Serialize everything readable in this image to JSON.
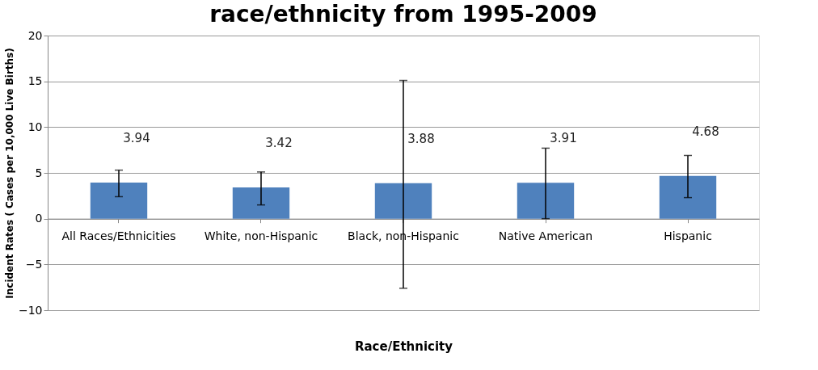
{
  "chart_data": {
    "type": "bar",
    "title": "race/ethnicity from 1995-2009",
    "xlabel": "Race/Ethnicity",
    "ylabel": "Incident Rates  ( Cases  per 10,000 Live Births)",
    "categories": [
      "All Races/Ethnicities",
      "White, non-Hispanic",
      "Black, non-Hispanic",
      "Native American",
      "Hispanic"
    ],
    "values": [
      3.94,
      3.42,
      3.88,
      3.91,
      4.68
    ],
    "errors": [
      [
        2.4,
        5.3
      ],
      [
        1.5,
        5.1
      ],
      [
        -7.6,
        15.1
      ],
      [
        0,
        7.7
      ],
      [
        2.3,
        6.9
      ]
    ],
    "color": "#4f81bd",
    "ylim": [
      -10,
      20
    ],
    "yticks": [
      -10,
      -5,
      0,
      5,
      10,
      15,
      20
    ],
    "grid": "y",
    "data_labels": true
  }
}
